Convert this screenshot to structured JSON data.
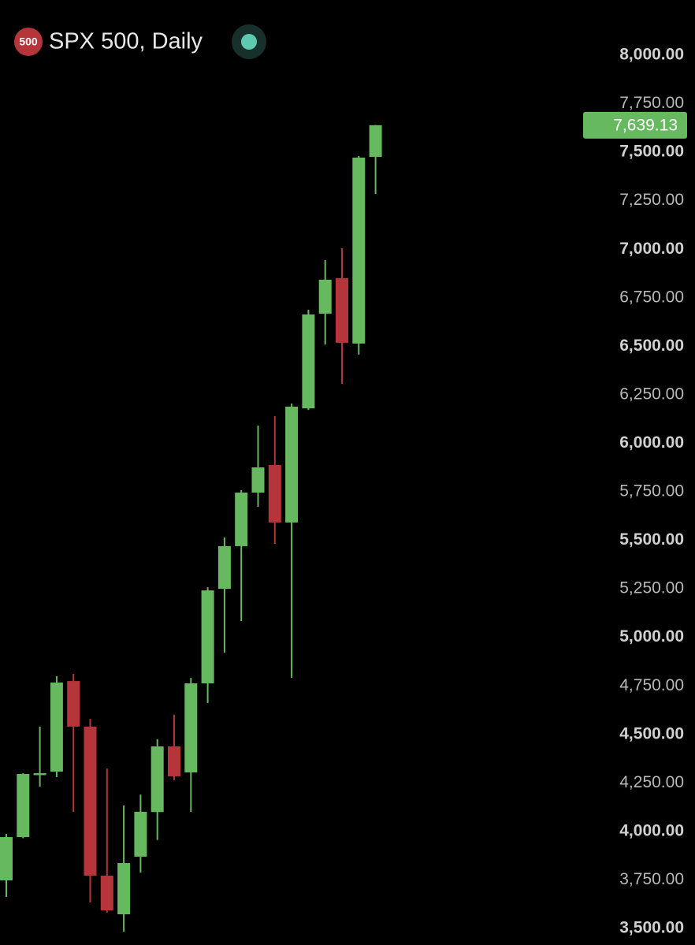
{
  "chart_data": {
    "type": "candlestick",
    "title": "SPX 500, Daily",
    "badge": "500",
    "up_color": "#66b95f",
    "down_color": "#b5353b",
    "open": [
      3748,
      3971,
      4290,
      4308,
      4775,
      4540,
      3772,
      3573,
      3870,
      4100,
      4438,
      4304,
      4763,
      5250,
      5470,
      5746,
      5888,
      5592,
      6180,
      6668,
      6851,
      6514,
      7476
    ],
    "high": [
      3987,
      4300,
      4540,
      4800,
      4812,
      4580,
      4324,
      4134,
      4190,
      4475,
      4601,
      4791,
      5258,
      5515,
      5758,
      6091,
      6140,
      6205,
      6688,
      6944,
      7005,
      7480,
      7640
    ],
    "low": [
      3662,
      3965,
      4231,
      4280,
      4101,
      3634,
      3581,
      3484,
      3788,
      3956,
      4264,
      4101,
      4662,
      4921,
      5084,
      5673,
      5482,
      4792,
      6172,
      6509,
      6306,
      6457,
      7285
    ],
    "close": [
      3971,
      4296,
      4300,
      4767,
      4540,
      3772,
      3593,
      3837,
      4101,
      4438,
      4284,
      4763,
      5242,
      5470,
      5746,
      5876,
      5592,
      6189,
      6664,
      6843,
      6518,
      7472,
      7639.13
    ],
    "ylim": [
      3500,
      8000
    ],
    "yticks": [
      {
        "value": 3500,
        "label": "3,500.00"
      },
      {
        "value": 3750,
        "label": "3,750.00"
      },
      {
        "value": 4000,
        "label": "4,000.00"
      },
      {
        "value": 4250,
        "label": "4,250.00"
      },
      {
        "value": 4500,
        "label": "4,500.00"
      },
      {
        "value": 4750,
        "label": "4,750.00"
      },
      {
        "value": 5000,
        "label": "5,000.00"
      },
      {
        "value": 5250,
        "label": "5,250.00"
      },
      {
        "value": 5500,
        "label": "5,500.00"
      },
      {
        "value": 5750,
        "label": "5,750.00"
      },
      {
        "value": 6000,
        "label": "6,000.00"
      },
      {
        "value": 6250,
        "label": "6,250.00"
      },
      {
        "value": 6500,
        "label": "6,500.00"
      },
      {
        "value": 6750,
        "label": "6,750.00"
      },
      {
        "value": 7000,
        "label": "7,000.00"
      },
      {
        "value": 7250,
        "label": "7,250.00"
      },
      {
        "value": 7500,
        "label": "7,500.00"
      },
      {
        "value": 7750,
        "label": "7,750.00"
      },
      {
        "value": 8000,
        "label": "8,000.00"
      }
    ],
    "last_price": {
      "value": 7639.13,
      "label": "7,639.13"
    }
  }
}
